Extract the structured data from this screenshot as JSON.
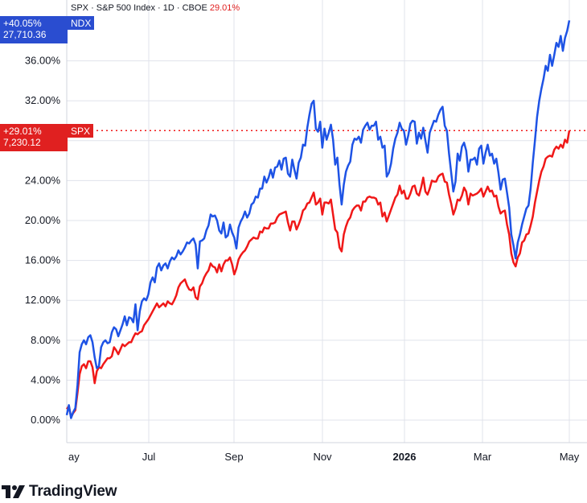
{
  "header": {
    "symbol": "SPX",
    "sep1": " · ",
    "name": "S&P 500 Index",
    "sep2": " · ",
    "interval": "1D",
    "sep3": " · ",
    "exchange": "CBOE",
    "change": "29.01%"
  },
  "badges": {
    "ndx": {
      "pct": "+40.05%",
      "price": "27,710.36",
      "symbol": "NDX"
    },
    "spx": {
      "pct": "+29.01%",
      "price": "7,230.12",
      "symbol": "SPX"
    }
  },
  "brand": {
    "name": "TradingView"
  },
  "colors": {
    "ndx": "#1e53e5",
    "spx": "#f01818",
    "spx_label": "#e02020",
    "ndx_label": "#2a4dd0"
  },
  "chart_data": {
    "type": "line",
    "ylim": [
      -2,
      42
    ],
    "y_ticks": [
      0,
      4,
      8,
      12,
      16,
      20,
      24,
      28,
      32,
      36
    ],
    "y_tick_labels": [
      "0.00%",
      "4.00%",
      "8.00%",
      "12.00%",
      "16.00%",
      "20.00%",
      "24.00%",
      "28.00%",
      "32.00%",
      "36.00%"
    ],
    "x_ticks": [
      {
        "label": "ay",
        "bold": false
      },
      {
        "label": "Jul",
        "bold": false
      },
      {
        "label": "Sep",
        "bold": false
      },
      {
        "label": "Nov",
        "bold": false
      },
      {
        "label": "2026",
        "bold": true
      },
      {
        "label": "Mar",
        "bold": false
      },
      {
        "label": "May",
        "bold": false
      }
    ],
    "grid": true,
    "series": [
      {
        "name": "NDX",
        "last": 40.05,
        "values": [
          0.5,
          1.5,
          0.2,
          0.8,
          1.2,
          3.5,
          6.8,
          7.6,
          8.0,
          7.6,
          8.3,
          8.5,
          7.8,
          6.3,
          5.2,
          5.4,
          7.3,
          7.8,
          8.0,
          7.7,
          7.8,
          8.8,
          9.3,
          9.1,
          8.4,
          9.0,
          9.6,
          10.4,
          9.5,
          10.3,
          10.2,
          9.8,
          11.6,
          9.0,
          10.9,
          11.9,
          12.2,
          12.0,
          12.6,
          13.8,
          14.3,
          13.8,
          15.3,
          15.7,
          15.0,
          15.5,
          15.7,
          15.2,
          15.9,
          16.3,
          16.1,
          16.4,
          17.0,
          16.6,
          16.9,
          17.3,
          17.8,
          17.7,
          18.0,
          18.2,
          17.6,
          15.2,
          17.9,
          18.0,
          18.2,
          19.0,
          19.5,
          20.6,
          20.4,
          20.5,
          20.0,
          19.0,
          18.7,
          19.8,
          18.3,
          18.5,
          19.6,
          18.8,
          18.3,
          17.2,
          19.3,
          19.9,
          20.3,
          20.9,
          20.3,
          20.7,
          21.6,
          21.8,
          22.4,
          22.3,
          23.2,
          23.2,
          24.4,
          23.8,
          24.3,
          25.1,
          24.3,
          25.3,
          25.4,
          26.0,
          25.1,
          26.2,
          26.3,
          24.7,
          24.4,
          26.1,
          25.1,
          24.2,
          25.8,
          26.3,
          27.6,
          27.5,
          29.3,
          30.6,
          31.7,
          32.0,
          29.2,
          28.9,
          29.9,
          27.3,
          29.2,
          28.1,
          28.8,
          29.6,
          28.1,
          25.6,
          26.3,
          23.6,
          21.6,
          23.6,
          24.9,
          25.5,
          25.9,
          27.6,
          28.2,
          28.1,
          28.4,
          27.8,
          29.1,
          29.5,
          29.8,
          29.1,
          29.5,
          29.5,
          29.9,
          28.1,
          28.4,
          27.3,
          27.5,
          24.4,
          24.8,
          25.7,
          27.2,
          28.2,
          28.8,
          29.8,
          29.2,
          29.0,
          27.6,
          28.5,
          29.7,
          30.0,
          29.9,
          27.7,
          28.8,
          28.2,
          29.3,
          28.0,
          26.8,
          28.8,
          29.4,
          30.0,
          29.9,
          30.6,
          31.1,
          31.4,
          29.5,
          29.0,
          26.7,
          24.8,
          22.9,
          23.9,
          26.7,
          26.0,
          27.4,
          27.8,
          27.0,
          24.9,
          26.1,
          26.1,
          26.3,
          25.6,
          27.2,
          27.5,
          25.7,
          26.8,
          27.6,
          26.5,
          26.7,
          25.7,
          26.2,
          24.8,
          23.1,
          24.1,
          24.2,
          22.8,
          21.3,
          18.6,
          17.5,
          16.2,
          17.8,
          18.6,
          19.6,
          20.4,
          21.2,
          21.5,
          23.2,
          25.8,
          28.0,
          30.4,
          32.0,
          33.2,
          34.2,
          35.5,
          35.0,
          36.6,
          35.5,
          36.6,
          37.8,
          37.4,
          38.5,
          37.0,
          38.3,
          39.0,
          40.05
        ]
      },
      {
        "name": "SPX",
        "last": 29.01,
        "values": [
          1.1,
          1.4,
          0.3,
          0.7,
          1.0,
          2.7,
          4.6,
          5.4,
          5.6,
          5.2,
          5.9,
          5.9,
          5.3,
          3.7,
          4.9,
          5.3,
          5.2,
          5.6,
          5.9,
          6.2,
          6.2,
          6.4,
          7.3,
          7.0,
          6.6,
          7.1,
          7.6,
          7.4,
          7.6,
          7.8,
          7.8,
          8.3,
          8.7,
          8.6,
          8.8,
          8.9,
          9.5,
          9.8,
          10.1,
          10.5,
          10.9,
          11.3,
          11.7,
          11.3,
          11.5,
          11.7,
          11.4,
          11.9,
          11.7,
          11.6,
          12.0,
          12.5,
          13.3,
          13.7,
          13.9,
          14.1,
          13.5,
          13.1,
          13.0,
          13.3,
          12.3,
          12.1,
          13.4,
          13.7,
          14.3,
          14.7,
          15.0,
          15.7,
          15.4,
          15.3,
          14.8,
          15.6,
          14.9,
          15.6,
          16.0,
          16.0,
          16.3,
          15.6,
          14.6,
          15.2,
          16.1,
          16.5,
          16.8,
          17.0,
          17.4,
          17.9,
          18.1,
          18.3,
          18.2,
          18.2,
          18.9,
          18.8,
          19.3,
          19.2,
          19.2,
          19.7,
          19.7,
          19.8,
          20.3,
          20.6,
          20.7,
          20.8,
          20.9,
          19.8,
          19.0,
          19.9,
          19.9,
          19.1,
          19.6,
          20.2,
          21.0,
          21.2,
          21.7,
          21.8,
          22.3,
          22.8,
          21.6,
          21.8,
          22.2,
          20.6,
          21.8,
          21.8,
          21.7,
          22.1,
          20.6,
          19.1,
          18.8,
          17.3,
          16.9,
          18.6,
          19.4,
          20.0,
          20.3,
          21.0,
          21.3,
          21.5,
          21.5,
          21.0,
          21.9,
          21.9,
          22.3,
          22.4,
          22.3,
          22.3,
          22.2,
          21.6,
          21.8,
          20.4,
          20.8,
          19.9,
          20.5,
          21.1,
          21.7,
          22.3,
          22.6,
          23.5,
          22.7,
          23.0,
          22.2,
          22.2,
          22.7,
          23.4,
          23.5,
          22.7,
          22.5,
          23.3,
          24.3,
          22.9,
          22.6,
          23.2,
          24.0,
          23.9,
          23.9,
          24.4,
          24.6,
          24.7,
          23.9,
          23.8,
          22.6,
          21.7,
          20.6,
          21.2,
          22.1,
          22.0,
          22.5,
          23.3,
          22.9,
          21.6,
          22.7,
          22.5,
          22.6,
          22.7,
          22.9,
          23.2,
          22.4,
          22.9,
          23.4,
          22.9,
          23.0,
          22.4,
          22.5,
          21.4,
          20.7,
          20.9,
          21.0,
          19.6,
          18.6,
          16.7,
          15.8,
          15.4,
          16.3,
          16.7,
          17.8,
          18.0,
          18.6,
          18.7,
          19.5,
          20.4,
          21.8,
          22.9,
          24.0,
          24.9,
          25.4,
          26.2,
          26.4,
          26.5,
          26.4,
          27.1,
          27.4,
          27.2,
          27.6,
          27.3,
          28.1,
          27.8,
          29.01
        ]
      }
    ]
  }
}
